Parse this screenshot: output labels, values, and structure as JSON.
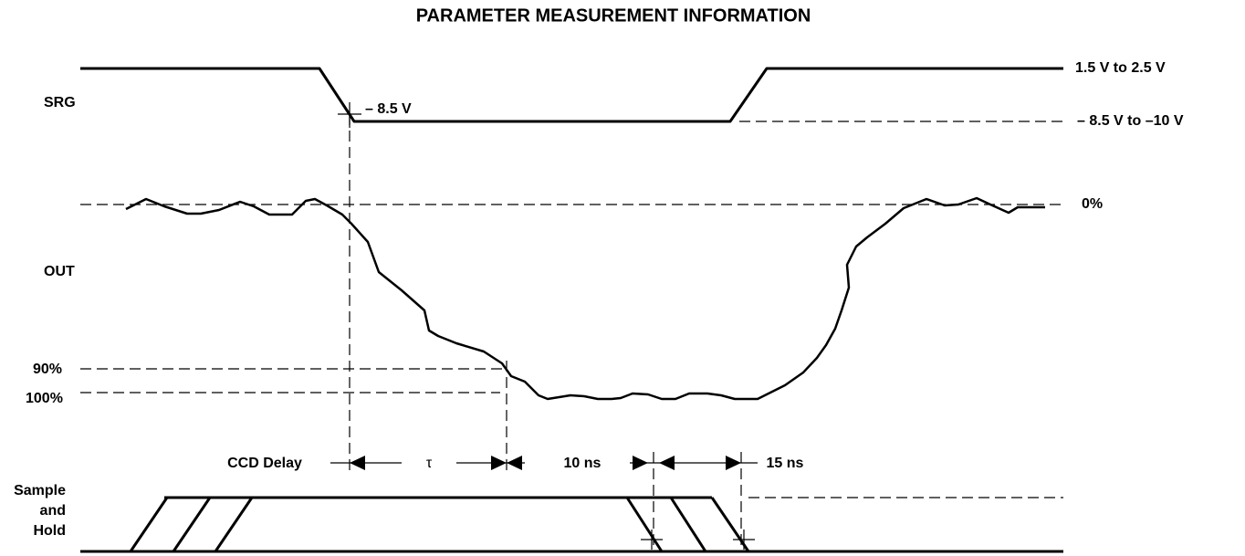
{
  "title": "PARAMETER MEASUREMENT INFORMATION",
  "signals": {
    "srg": {
      "label": "SRG",
      "marker": "– 8.5 V",
      "high_level": "1.5 V to 2.5 V",
      "low_level": "– 8.5 V to –10 V"
    },
    "out": {
      "label": "OUT",
      "zero_level": "0%",
      "level_90": "90%",
      "level_100": "100%"
    },
    "sample_hold": {
      "label_lines": [
        "Sample",
        "and",
        "Hold"
      ]
    }
  },
  "timing": {
    "ccd_delay": "CCD Delay",
    "tau": "τ",
    "interval_1": "10 ns",
    "interval_2": "15 ns"
  }
}
